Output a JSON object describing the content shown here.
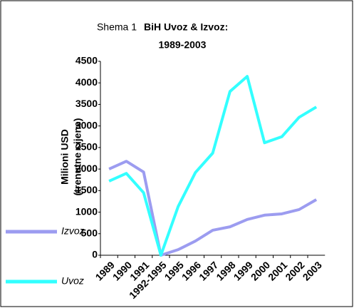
{
  "chart_data": {
    "type": "line",
    "title_prefix": "Shema 1",
    "title": "BiH Uvoz & Izvoz:",
    "subtitle": "1989-2003",
    "ylabel": "Milioni USD",
    "ylabel_note": "(trenutne cijene)",
    "categories": [
      "1989",
      "1990",
      "1991",
      "1992-1995",
      "1995",
      "1996",
      "1997",
      "1998",
      "1999",
      "2000",
      "2001",
      "2002",
      "2003"
    ],
    "series": [
      {
        "name": "Izvoz",
        "color": "#9c9cf0",
        "values": [
          2000,
          2180,
          1930,
          0,
          130,
          330,
          580,
          660,
          830,
          930,
          960,
          1060,
          1290
        ]
      },
      {
        "name": "Uvoz",
        "color": "#33ffff",
        "values": [
          1720,
          1900,
          1450,
          0,
          1130,
          1920,
          2370,
          3800,
          4150,
          2610,
          2750,
          3200,
          3440
        ]
      }
    ],
    "ylim": [
      0,
      4500
    ],
    "yticks": [
      0,
      500,
      1000,
      1500,
      2000,
      2500,
      3000,
      3500,
      4000,
      4500
    ],
    "grid": false,
    "legend": "left"
  }
}
